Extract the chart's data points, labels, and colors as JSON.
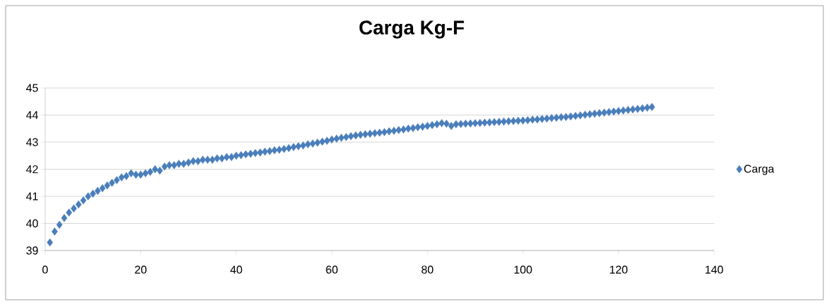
{
  "chart_data": {
    "type": "scatter",
    "title": "Carga Kg-F",
    "x": [
      1,
      2,
      3,
      4,
      5,
      6,
      7,
      8,
      9,
      10,
      11,
      12,
      13,
      14,
      15,
      16,
      17,
      18,
      19,
      20,
      21,
      22,
      23,
      24,
      25,
      26,
      27,
      28,
      29,
      30,
      31,
      32,
      33,
      34,
      35,
      36,
      37,
      38,
      39,
      40,
      41,
      42,
      43,
      44,
      45,
      46,
      47,
      48,
      49,
      50,
      51,
      52,
      53,
      54,
      55,
      56,
      57,
      58,
      59,
      60,
      61,
      62,
      63,
      64,
      65,
      66,
      67,
      68,
      69,
      70,
      71,
      72,
      73,
      74,
      75,
      76,
      77,
      78,
      79,
      80,
      81,
      82,
      83,
      84,
      85,
      86,
      87,
      88,
      89,
      90,
      91,
      92,
      93,
      94,
      95,
      96,
      97,
      98,
      99,
      100,
      101,
      102,
      103,
      104,
      105,
      106,
      107,
      108,
      109,
      110,
      111,
      112,
      113,
      114,
      115,
      116,
      117,
      118,
      119,
      120,
      121,
      122,
      123,
      124,
      125,
      126,
      127
    ],
    "series": [
      {
        "name": "Carga",
        "color": "#4a7ebb",
        "values": [
          39.3,
          39.7,
          39.95,
          40.2,
          40.4,
          40.55,
          40.7,
          40.85,
          41.0,
          41.1,
          41.2,
          41.3,
          41.4,
          41.5,
          41.6,
          41.7,
          41.75,
          41.85,
          41.8,
          41.8,
          41.85,
          41.9,
          42.0,
          41.95,
          42.1,
          42.15,
          42.15,
          42.2,
          42.2,
          42.25,
          42.3,
          42.3,
          42.35,
          42.35,
          42.35,
          42.4,
          42.4,
          42.45,
          42.45,
          42.5,
          42.52,
          42.55,
          42.57,
          42.6,
          42.62,
          42.65,
          42.67,
          42.7,
          42.72,
          42.75,
          42.78,
          42.82,
          42.85,
          42.88,
          42.92,
          42.95,
          42.98,
          43.02,
          43.05,
          43.1,
          43.13,
          43.16,
          43.19,
          43.22,
          43.25,
          43.27,
          43.29,
          43.31,
          43.33,
          43.35,
          43.37,
          43.4,
          43.42,
          43.45,
          43.47,
          43.5,
          43.52,
          43.55,
          43.57,
          43.6,
          43.63,
          43.66,
          43.7,
          43.68,
          43.6,
          43.66,
          43.67,
          43.68,
          43.69,
          43.7,
          43.71,
          43.72,
          43.73,
          43.74,
          43.75,
          43.76,
          43.77,
          43.78,
          43.79,
          43.8,
          43.81,
          43.83,
          43.84,
          43.86,
          43.87,
          43.89,
          43.9,
          43.92,
          43.93,
          43.95,
          43.97,
          43.99,
          44.01,
          44.03,
          44.05,
          44.07,
          44.09,
          44.11,
          44.13,
          44.15,
          44.17,
          44.19,
          44.21,
          44.23,
          44.25,
          44.27,
          44.3
        ]
      }
    ],
    "xlim": [
      0,
      140
    ],
    "xticks": [
      0,
      20,
      40,
      60,
      80,
      100,
      120,
      140
    ],
    "ylim": [
      39,
      45
    ],
    "yticks": [
      39,
      40,
      41,
      42,
      43,
      44,
      45
    ],
    "grid": "y",
    "legend": "right",
    "marker": "diamond"
  }
}
